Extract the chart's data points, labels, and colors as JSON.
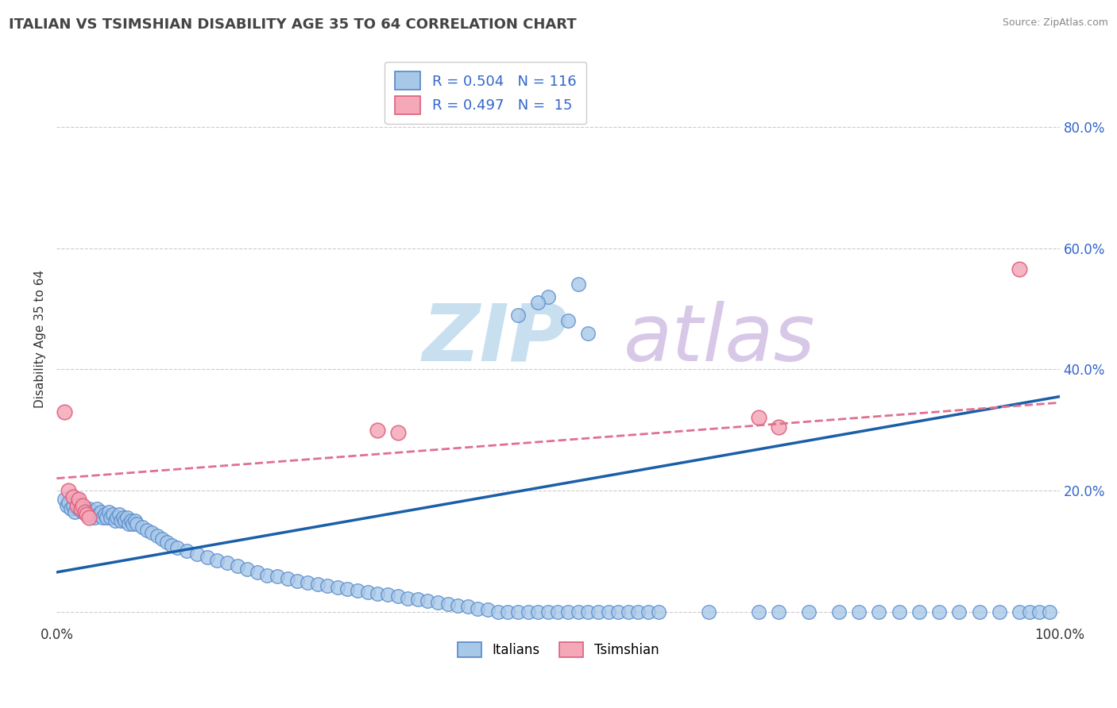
{
  "title": "ITALIAN VS TSIMSHIAN DISABILITY AGE 35 TO 64 CORRELATION CHART",
  "source_text": "Source: ZipAtlas.com",
  "ylabel": "Disability Age 35 to 64",
  "xlim": [
    0.0,
    1.0
  ],
  "ylim": [
    -0.02,
    0.92
  ],
  "x_tick_labels": [
    "0.0%",
    "",
    "",
    "",
    "",
    "",
    "",
    "",
    "",
    "",
    "100.0%"
  ],
  "y_tick_labels_right": [
    "",
    "20.0%",
    "40.0%",
    "60.0%",
    "80.0%"
  ],
  "legend_label1": "Italians",
  "legend_label2": "Tsimshian",
  "scatter_color_italian": "#a8c8e8",
  "scatter_color_tsimshian": "#f4a8b8",
  "scatter_edge_italian": "#5588cc",
  "scatter_edge_tsimshian": "#dd6080",
  "line_color_italian": "#1a5fa8",
  "line_color_tsimshian": "#e07090",
  "watermark_zip": "ZIP",
  "watermark_atlas": "atlas",
  "watermark_color_zip": "#c8dff0",
  "watermark_color_atlas": "#d8c8e8",
  "grid_color": "#cccccc",
  "legend_r1": "R = 0.504",
  "legend_n1": "N = 116",
  "legend_r2": "R = 0.497",
  "legend_n2": "N =  15",
  "bg_color": "#ffffff",
  "italian_x": [
    0.008,
    0.01,
    0.012,
    0.014,
    0.016,
    0.018,
    0.02,
    0.022,
    0.024,
    0.026,
    0.028,
    0.03,
    0.032,
    0.034,
    0.036,
    0.038,
    0.04,
    0.042,
    0.044,
    0.046,
    0.048,
    0.05,
    0.052,
    0.054,
    0.056,
    0.058,
    0.06,
    0.062,
    0.064,
    0.066,
    0.068,
    0.07,
    0.072,
    0.074,
    0.076,
    0.078,
    0.08,
    0.085,
    0.09,
    0.095,
    0.1,
    0.105,
    0.11,
    0.115,
    0.12,
    0.13,
    0.14,
    0.15,
    0.16,
    0.17,
    0.18,
    0.19,
    0.2,
    0.21,
    0.22,
    0.23,
    0.24,
    0.25,
    0.26,
    0.27,
    0.28,
    0.29,
    0.3,
    0.31,
    0.32,
    0.33,
    0.34,
    0.35,
    0.36,
    0.37,
    0.38,
    0.39,
    0.4,
    0.41,
    0.42,
    0.43,
    0.44,
    0.45,
    0.46,
    0.47,
    0.48,
    0.49,
    0.5,
    0.51,
    0.52,
    0.53,
    0.54,
    0.55,
    0.56,
    0.57,
    0.58,
    0.59,
    0.6,
    0.65,
    0.7,
    0.72,
    0.75,
    0.78,
    0.8,
    0.82,
    0.84,
    0.86,
    0.88,
    0.9,
    0.92,
    0.94,
    0.96,
    0.97,
    0.98,
    0.99,
    0.46,
    0.49,
    0.51,
    0.53,
    0.48,
    0.52
  ],
  "italian_y": [
    0.185,
    0.175,
    0.18,
    0.17,
    0.175,
    0.165,
    0.185,
    0.17,
    0.175,
    0.165,
    0.17,
    0.165,
    0.17,
    0.16,
    0.165,
    0.155,
    0.17,
    0.16,
    0.165,
    0.155,
    0.16,
    0.155,
    0.165,
    0.155,
    0.16,
    0.15,
    0.155,
    0.16,
    0.15,
    0.155,
    0.15,
    0.155,
    0.145,
    0.15,
    0.145,
    0.15,
    0.145,
    0.14,
    0.135,
    0.13,
    0.125,
    0.12,
    0.115,
    0.11,
    0.105,
    0.1,
    0.095,
    0.09,
    0.085,
    0.08,
    0.075,
    0.07,
    0.065,
    0.06,
    0.058,
    0.055,
    0.05,
    0.048,
    0.045,
    0.042,
    0.04,
    0.038,
    0.035,
    0.032,
    0.03,
    0.028,
    0.025,
    0.022,
    0.02,
    0.018,
    0.015,
    0.012,
    0.01,
    0.008,
    0.005,
    0.003,
    0.0,
    0.0,
    0.0,
    0.0,
    0.0,
    0.0,
    0.0,
    0.0,
    0.0,
    0.0,
    0.0,
    0.0,
    0.0,
    0.0,
    0.0,
    0.0,
    0.0,
    0.0,
    0.0,
    0.0,
    0.0,
    0.0,
    0.0,
    0.0,
    0.0,
    0.0,
    0.0,
    0.0,
    0.0,
    0.0,
    0.0,
    0.0,
    0.0,
    0.0,
    0.49,
    0.52,
    0.48,
    0.46,
    0.51,
    0.54
  ],
  "tsimshian_x": [
    0.008,
    0.012,
    0.016,
    0.02,
    0.022,
    0.024,
    0.026,
    0.028,
    0.03,
    0.032,
    0.32,
    0.34,
    0.7,
    0.72,
    0.96
  ],
  "tsimshian_y": [
    0.33,
    0.2,
    0.19,
    0.175,
    0.185,
    0.17,
    0.175,
    0.165,
    0.16,
    0.155,
    0.3,
    0.295,
    0.32,
    0.305,
    0.565
  ],
  "italian_line_x0": 0.0,
  "italian_line_x1": 1.0,
  "italian_line_y0": 0.065,
  "italian_line_y1": 0.355,
  "tsimshian_line_x0": 0.0,
  "tsimshian_line_x1": 1.0,
  "tsimshian_line_y0": 0.22,
  "tsimshian_line_y1": 0.345
}
